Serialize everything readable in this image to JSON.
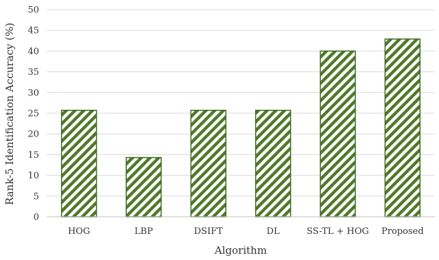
{
  "chart_data": {
    "type": "bar",
    "title": "",
    "xlabel": "Algorithm",
    "ylabel": "Rank-5 Identification Accuracy (%)",
    "categories": [
      "HOG",
      "LBP",
      "DSIFT",
      "DL",
      "SS-TL + HOG",
      "Proposed"
    ],
    "values": [
      25.7,
      14.3,
      25.7,
      25.7,
      40.0,
      42.9
    ],
    "ylim": [
      0,
      50
    ],
    "yticks": [
      0,
      5,
      10,
      15,
      20,
      25,
      30,
      35,
      40,
      45,
      50
    ],
    "grid": true,
    "legend": "none",
    "bar_fill_pattern": "diagonal-stripes",
    "colors": {
      "bar_stripe": "#4e7a2a",
      "bar_background": "#ffffff",
      "bar_outline": "#3f6a1f",
      "grid": "#d9d9d9",
      "axis": "#bfbfbf",
      "text": "#333333"
    }
  }
}
